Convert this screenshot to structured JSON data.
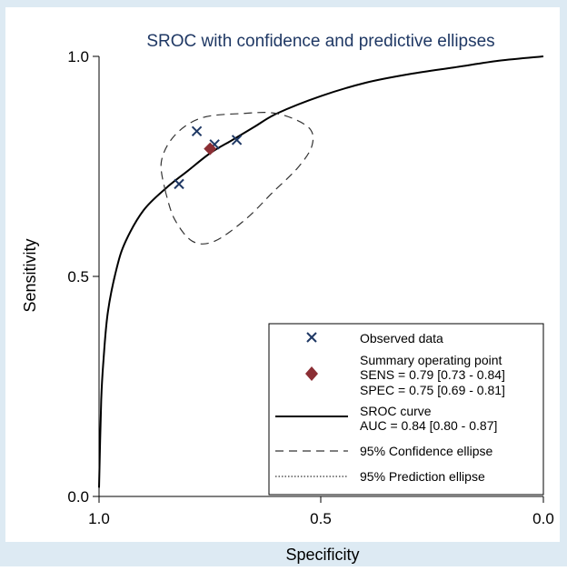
{
  "chart_data": {
    "type": "scatter",
    "title": "SROC with confidence and predictive ellipses",
    "xlabel": "Specificity",
    "ylabel": "Sensitivity",
    "xlim": [
      1.0,
      0.0
    ],
    "ylim": [
      0.0,
      1.0
    ],
    "x_reversed": true,
    "x_ticks": [
      "1.0",
      "0.5",
      "0.0"
    ],
    "y_ticks": [
      "0.0",
      "0.5",
      "1.0"
    ],
    "grid": false,
    "legend_position": "bottom-right",
    "series": [
      {
        "name": "Observed data",
        "kind": "scatter",
        "marker": "x",
        "color": "#1f3864",
        "points": [
          {
            "x": 0.78,
            "y": 0.83
          },
          {
            "x": 0.74,
            "y": 0.8
          },
          {
            "x": 0.69,
            "y": 0.81
          },
          {
            "x": 0.82,
            "y": 0.71
          }
        ]
      },
      {
        "name": "Summary operating point",
        "kind": "point",
        "marker": "diamond",
        "color": "#8b2e34",
        "points": [
          {
            "x": 0.75,
            "y": 0.79
          }
        ]
      },
      {
        "name": "SROC curve",
        "kind": "line",
        "style": "solid",
        "color": "#000000",
        "points": [
          {
            "x": 1.0,
            "y": 0.02
          },
          {
            "x": 0.995,
            "y": 0.22
          },
          {
            "x": 0.99,
            "y": 0.31
          },
          {
            "x": 0.98,
            "y": 0.42
          },
          {
            "x": 0.96,
            "y": 0.52
          },
          {
            "x": 0.94,
            "y": 0.58
          },
          {
            "x": 0.9,
            "y": 0.65
          },
          {
            "x": 0.85,
            "y": 0.7
          },
          {
            "x": 0.8,
            "y": 0.74
          },
          {
            "x": 0.75,
            "y": 0.78
          },
          {
            "x": 0.7,
            "y": 0.81
          },
          {
            "x": 0.65,
            "y": 0.84
          },
          {
            "x": 0.6,
            "y": 0.87
          },
          {
            "x": 0.5,
            "y": 0.91
          },
          {
            "x": 0.4,
            "y": 0.94
          },
          {
            "x": 0.3,
            "y": 0.96
          },
          {
            "x": 0.2,
            "y": 0.975
          },
          {
            "x": 0.1,
            "y": 0.99
          },
          {
            "x": 0.0,
            "y": 1.0
          }
        ]
      },
      {
        "name": "95% Confidence ellipse",
        "kind": "line",
        "style": "dashed",
        "color": "#333333",
        "points": [
          {
            "x": 0.85,
            "y": 0.69
          },
          {
            "x": 0.86,
            "y": 0.76
          },
          {
            "x": 0.83,
            "y": 0.82
          },
          {
            "x": 0.77,
            "y": 0.86
          },
          {
            "x": 0.68,
            "y": 0.87
          },
          {
            "x": 0.6,
            "y": 0.87
          },
          {
            "x": 0.53,
            "y": 0.84
          },
          {
            "x": 0.52,
            "y": 0.8
          },
          {
            "x": 0.55,
            "y": 0.75
          },
          {
            "x": 0.61,
            "y": 0.69
          },
          {
            "x": 0.67,
            "y": 0.63
          },
          {
            "x": 0.74,
            "y": 0.58
          },
          {
            "x": 0.79,
            "y": 0.58
          },
          {
            "x": 0.83,
            "y": 0.63
          },
          {
            "x": 0.85,
            "y": 0.69
          }
        ]
      },
      {
        "name": "95% Prediction ellipse",
        "kind": "line",
        "style": "dotted",
        "color": "#333333",
        "points": []
      }
    ],
    "legend": {
      "observed_label": "Observed data",
      "summary_label": "Summary operating point",
      "sens_text": "SENS = 0.79 [0.73 - 0.84]",
      "spec_text": "SPEC = 0.75 [0.69 - 0.81]",
      "sroc_label": "SROC curve",
      "auc_text": "AUC = 0.84 [0.80 - 0.87]",
      "confidence_label": "95% Confidence ellipse",
      "prediction_label": "95% Prediction ellipse"
    },
    "colors": {
      "background": "#ddeaf3",
      "plot_area": "#ffffff",
      "title": "#1f3864",
      "observed": "#1f3864",
      "summary": "#8b2e34"
    }
  }
}
